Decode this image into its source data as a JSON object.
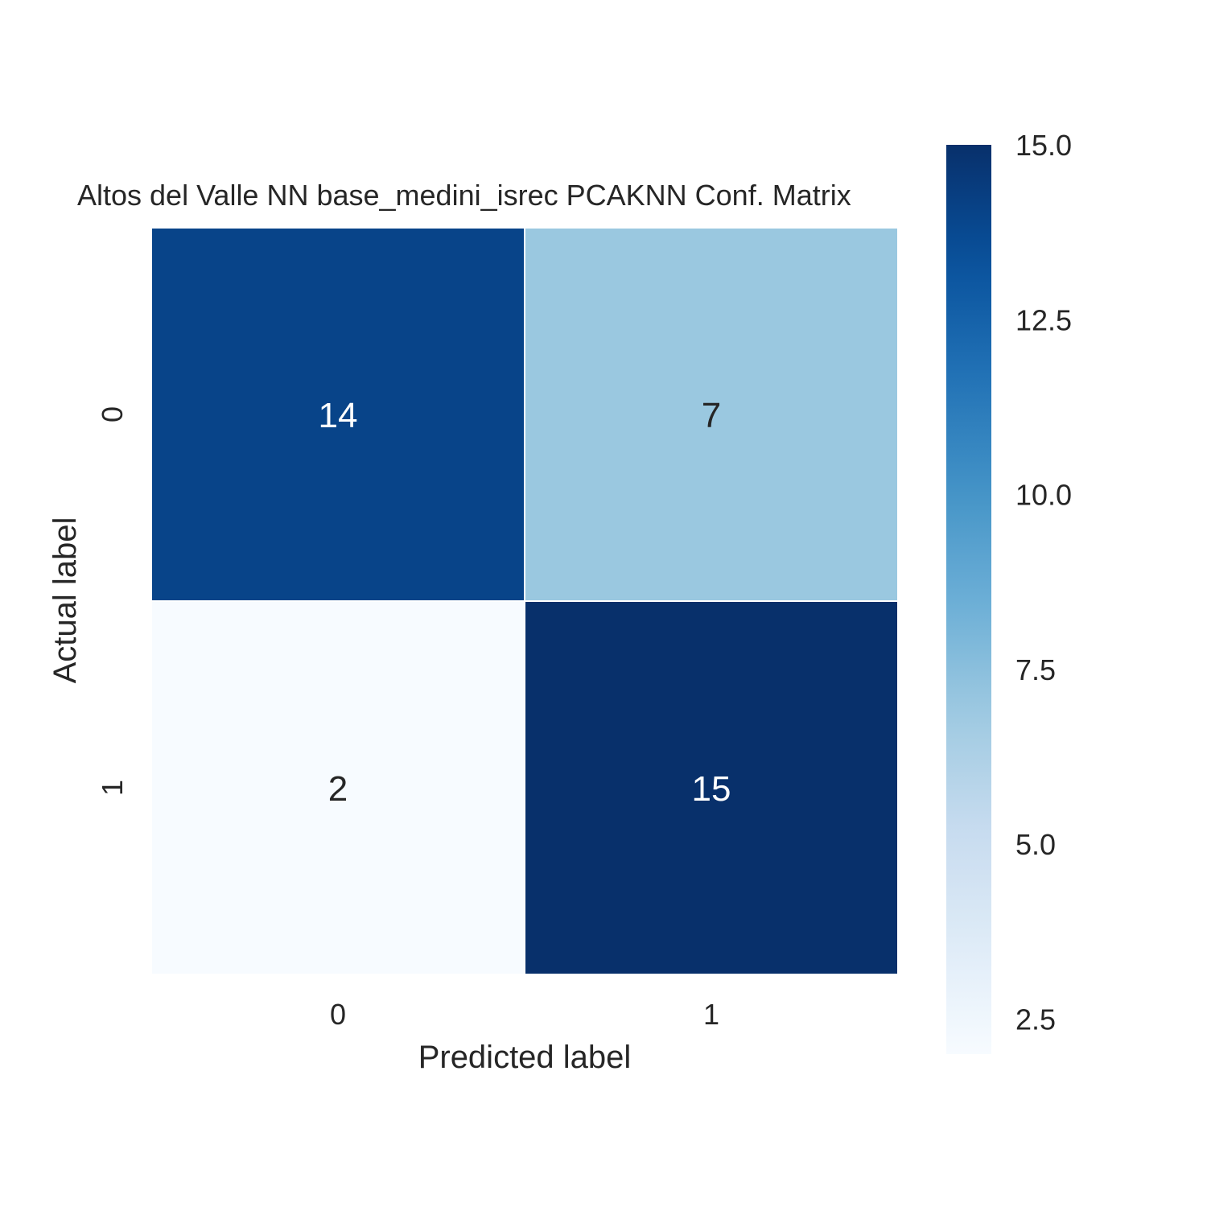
{
  "chart_data": {
    "type": "heatmap",
    "title": "Altos del Valle NN base_medini_isrec PCAKNN Conf. Matrix",
    "xlabel": "Predicted label",
    "ylabel": "Actual label",
    "x_categories": [
      "0",
      "1"
    ],
    "y_categories": [
      "0",
      "1"
    ],
    "values": [
      [
        14,
        7
      ],
      [
        2,
        15
      ]
    ],
    "colormap": "Blues",
    "color_range": [
      2,
      15
    ],
    "colorbar": {
      "ticks": [
        2.5,
        5.0,
        7.5,
        10.0,
        12.5,
        15.0
      ],
      "tick_labels": [
        "2.5",
        "5.0",
        "7.5",
        "10.0",
        "12.5",
        "15.0"
      ]
    }
  }
}
